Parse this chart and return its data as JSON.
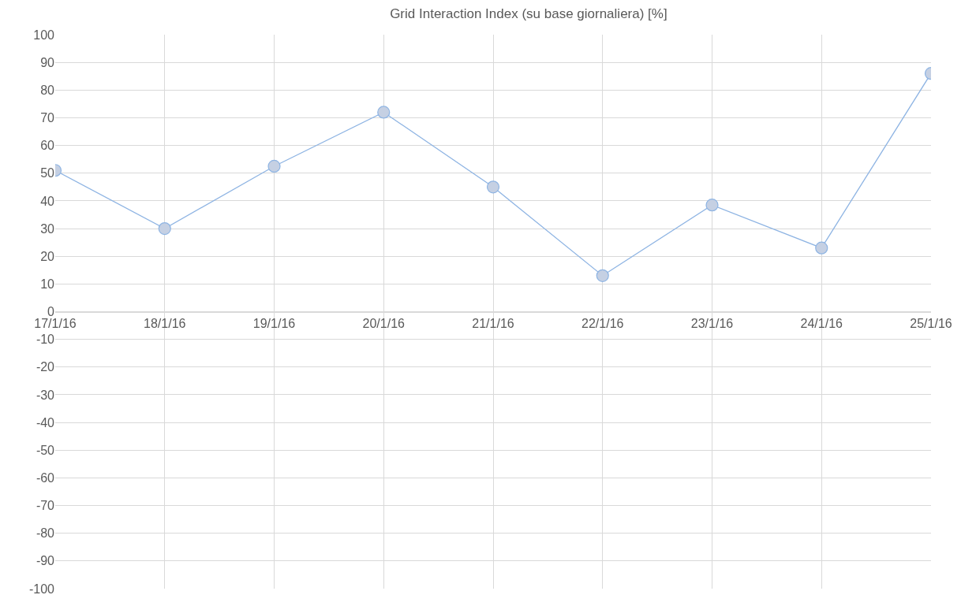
{
  "chart_data": {
    "type": "line",
    "title": "Grid Interaction Index (su base giornaliera) [%]",
    "x": [
      "--01-17",
      "--01-18",
      "--01-19",
      "--01-20",
      "--01-21",
      "--01-22",
      "--01-23",
      "--01-24",
      "--01-25"
    ],
    "series": [
      {
        "color": "#8eb4e3",
        "values": [
          51,
          30,
          52.5,
          72,
          45,
          13,
          38.5,
          23,
          86
        ]
      }
    ],
    "xlim": [
      "--01-17",
      "--01-25"
    ],
    "xticks": [
      {
        "value": "--01-17",
        "label": "17/1/16"
      },
      {
        "value": "--01-18",
        "label": "18/1/16"
      },
      {
        "value": "--01-19",
        "label": "19/1/16"
      },
      {
        "value": "--01-20",
        "label": "20/1/16"
      },
      {
        "value": "--01-21",
        "label": "21/1/16"
      },
      {
        "value": "--01-22",
        "label": "22/1/16"
      },
      {
        "value": "--01-23",
        "label": "23/1/16"
      },
      {
        "value": "--01-24",
        "label": "24/1/16"
      },
      {
        "value": "--01-25",
        "label": "25/1/16"
      }
    ],
    "ylim": [
      -100,
      100
    ],
    "yticks": [
      -100,
      -90,
      -80,
      -70,
      -60,
      -50,
      -40,
      -30,
      -20,
      -10,
      0,
      10,
      20,
      30,
      40,
      50,
      60,
      70,
      80,
      90,
      100
    ],
    "grid": true,
    "marker": "circle",
    "line_style": "solid",
    "legend": false
  }
}
